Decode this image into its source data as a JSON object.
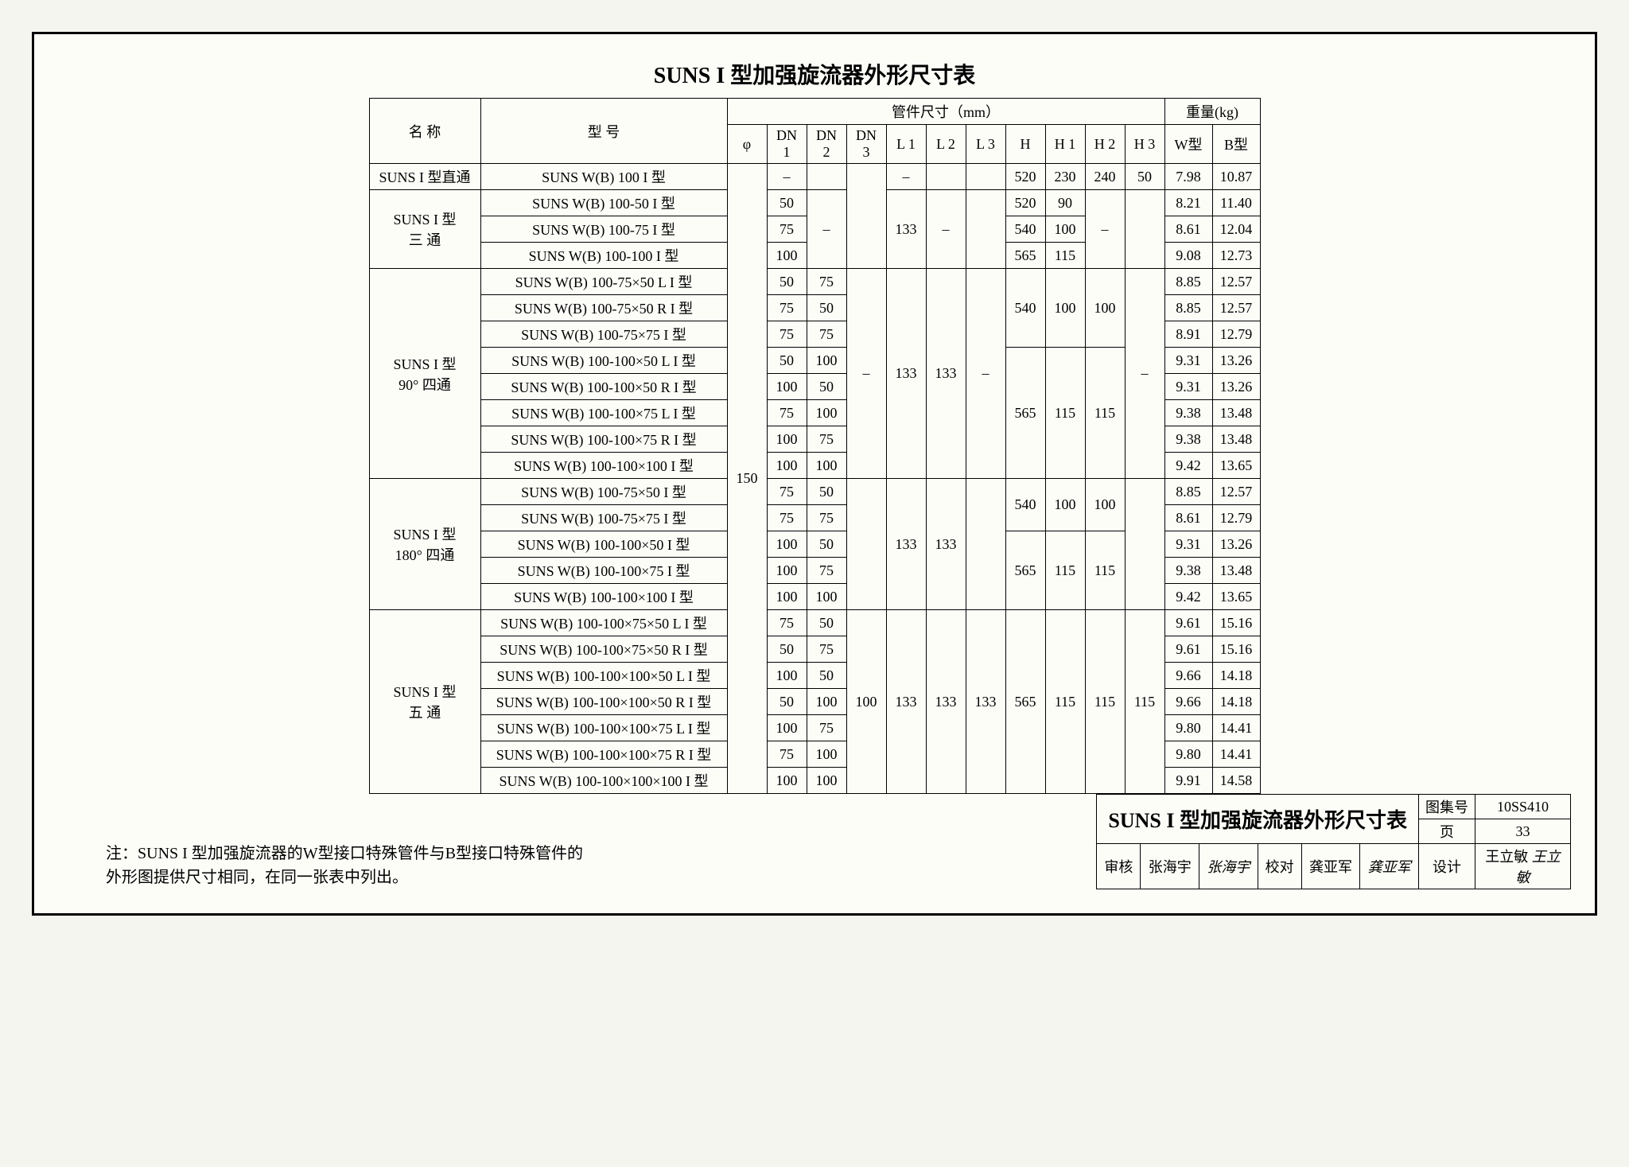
{
  "title": "SUNS I 型加强旋流器外形尺寸表",
  "headers": {
    "name": "名 称",
    "model": "型 号",
    "pipe_dim": "管件尺寸（mm）",
    "weight": "重量(kg)",
    "phi": "φ",
    "dn1": "DN 1",
    "dn2": "DN 2",
    "dn3": "DN 3",
    "l1": "L 1",
    "l2": "L 2",
    "l3": "L 3",
    "h": "H",
    "h1": "H 1",
    "h2": "H 2",
    "h3": "H 3",
    "wtype": "W型",
    "btype": "B型"
  },
  "phi_all": "150",
  "groups": [
    {
      "name": "SUNS I 型直通",
      "rows": [
        {
          "model": "SUNS W(B) 100 I 型",
          "dn1": "–",
          "dn2": "",
          "dn3": "",
          "l1": "–",
          "l2": "",
          "l3": "",
          "h": "520",
          "h1": "230",
          "h2": "240",
          "h3": "50",
          "w": "7.98",
          "b": "10.87"
        }
      ]
    },
    {
      "name": "SUNS I 型\n三 通",
      "rows": [
        {
          "model": "SUNS W(B) 100-50 I 型",
          "dn1": "50",
          "h": "520",
          "h1": "90",
          "w": "8.21",
          "b": "11.40"
        },
        {
          "model": "SUNS W(B) 100-75 I 型",
          "dn1": "75",
          "h": "540",
          "h1": "100",
          "w": "8.61",
          "b": "12.04"
        },
        {
          "model": "SUNS W(B) 100-100 I 型",
          "dn1": "100",
          "h": "565",
          "h1": "115",
          "w": "9.08",
          "b": "12.73"
        }
      ],
      "dn2": "–",
      "dn3": "",
      "l1": "133",
      "l2": "–",
      "l3": "",
      "h2": "–",
      "h3": ""
    },
    {
      "name": "SUNS I 型\n90° 四通",
      "rows": [
        {
          "model": "SUNS W(B) 100-75×50 L I 型",
          "dn1": "50",
          "dn2": "75",
          "w": "8.85",
          "b": "12.57"
        },
        {
          "model": "SUNS W(B) 100-75×50 R I 型",
          "dn1": "75",
          "dn2": "50",
          "w": "8.85",
          "b": "12.57"
        },
        {
          "model": "SUNS W(B) 100-75×75 I 型",
          "dn1": "75",
          "dn2": "75",
          "w": "8.91",
          "b": "12.79"
        },
        {
          "model": "SUNS W(B) 100-100×50 L I 型",
          "dn1": "50",
          "dn2": "100",
          "w": "9.31",
          "b": "13.26"
        },
        {
          "model": "SUNS W(B) 100-100×50 R I 型",
          "dn1": "100",
          "dn2": "50",
          "w": "9.31",
          "b": "13.26"
        },
        {
          "model": "SUNS W(B) 100-100×75 L I 型",
          "dn1": "75",
          "dn2": "100",
          "w": "9.38",
          "b": "13.48"
        },
        {
          "model": "SUNS W(B) 100-100×75 R I 型",
          "dn1": "100",
          "dn2": "75",
          "w": "9.38",
          "b": "13.48"
        },
        {
          "model": "SUNS W(B) 100-100×100 I 型",
          "dn1": "100",
          "dn2": "100",
          "w": "9.42",
          "b": "13.65"
        }
      ],
      "subgroups_hh": [
        {
          "count": 3,
          "h": "540",
          "h1": "100",
          "h2": "100"
        },
        {
          "count": 5,
          "h": "565",
          "h1": "115",
          "h2": "115"
        }
      ],
      "dn3": "–",
      "l1": "133",
      "l2": "133",
      "l3": "–",
      "h3": "–"
    },
    {
      "name": "SUNS I 型\n180° 四通",
      "rows": [
        {
          "model": "SUNS W(B) 100-75×50  I 型",
          "dn1": "75",
          "dn2": "50",
          "w": "8.85",
          "b": "12.57"
        },
        {
          "model": "SUNS W(B) 100-75×75  I 型",
          "dn1": "75",
          "dn2": "75",
          "w": "8.61",
          "b": "12.79"
        },
        {
          "model": "SUNS W(B) 100-100×50 I 型",
          "dn1": "100",
          "dn2": "50",
          "w": "9.31",
          "b": "13.26"
        },
        {
          "model": "SUNS W(B) 100-100×75 I 型",
          "dn1": "100",
          "dn2": "75",
          "w": "9.38",
          "b": "13.48"
        },
        {
          "model": "SUNS W(B) 100-100×100  I 型",
          "dn1": "100",
          "dn2": "100",
          "w": "9.42",
          "b": "13.65"
        }
      ],
      "subgroups_hh": [
        {
          "count": 2,
          "h": "540",
          "h1": "100",
          "h2": "100"
        },
        {
          "count": 3,
          "h": "565",
          "h1": "115",
          "h2": "115"
        }
      ],
      "dn3": "",
      "l1": "133",
      "l2": "133",
      "l3": "",
      "h3": ""
    },
    {
      "name": "SUNS I 型\n五 通",
      "rows": [
        {
          "model": "SUNS W(B) 100-100×75×50 L I 型",
          "dn1": "75",
          "dn2": "50",
          "w": "9.61",
          "b": "15.16"
        },
        {
          "model": "SUNS W(B) 100-100×75×50 R I 型",
          "dn1": "50",
          "dn2": "75",
          "w": "9.61",
          "b": "15.16"
        },
        {
          "model": "SUNS W(B) 100-100×100×50 L I 型",
          "dn1": "100",
          "dn2": "50",
          "w": "9.66",
          "b": "14.18"
        },
        {
          "model": "SUNS W(B) 100-100×100×50 R I 型",
          "dn1": "50",
          "dn2": "100",
          "w": "9.66",
          "b": "14.18"
        },
        {
          "model": "SUNS W(B) 100-100×100×75 L I 型",
          "dn1": "100",
          "dn2": "75",
          "w": "9.80",
          "b": "14.41"
        },
        {
          "model": "SUNS W(B) 100-100×100×75 R I 型",
          "dn1": "75",
          "dn2": "100",
          "w": "9.80",
          "b": "14.41"
        },
        {
          "model": "SUNS W(B) 100-100×100×100 I 型",
          "dn1": "100",
          "dn2": "100",
          "w": "9.91",
          "b": "14.58"
        }
      ],
      "dn3": "100",
      "l1": "133",
      "l2": "133",
      "l3": "133",
      "h": "565",
      "h1": "115",
      "h2": "115",
      "h3": "115"
    }
  ],
  "note_label": "注：",
  "note": "SUNS I 型加强旋流器的W型接口特殊管件与B型接口特殊管件的外形图提供尺寸相同，在同一张表中列出。",
  "titleblock": {
    "main": "SUNS I 型加强旋流器外形尺寸表",
    "atlas_label": "图集号",
    "atlas": "10SS410",
    "page_label": "页",
    "page": "33",
    "review": "审核",
    "review_name": "张海宇",
    "review_sig": "张海宇",
    "proof": "校对",
    "proof_name": "龚亚军",
    "proof_sig": "龚亚军",
    "design": "设计",
    "design_name": "王立敏",
    "design_sig": "王立敏"
  }
}
